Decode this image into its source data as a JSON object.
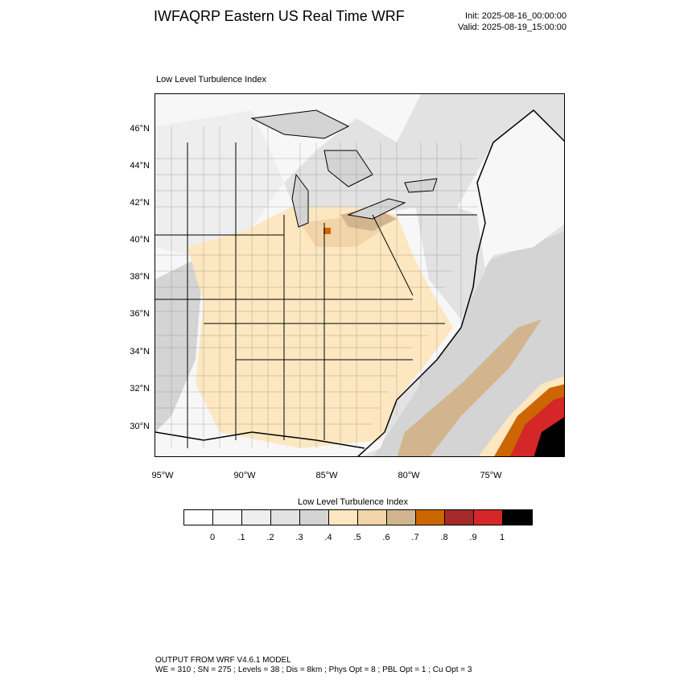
{
  "header": {
    "title": "IWFAQRP Eastern US Real Time WRF",
    "init": "Init: 2025-08-16_00:00:00",
    "valid": "Valid: 2025-08-19_15:00:00"
  },
  "plot": {
    "title": "Low Level Turbulence Index",
    "lat_labels": [
      "46°N",
      "44°N",
      "42°N",
      "40°N",
      "38°N",
      "36°N",
      "34°N",
      "32°N",
      "30°N"
    ],
    "lon_labels": [
      "95°W",
      "90°W",
      "85°W",
      "80°W",
      "75°W"
    ]
  },
  "colorbar": {
    "title": "Low Level Turbulence Index",
    "colors": [
      "#ffffff",
      "#f7f7f7",
      "#eeeeee",
      "#e2e2e2",
      "#d4d4d4",
      "#fde7c0",
      "#f2d4a8",
      "#d2b58e",
      "#cc6600",
      "#a52a2a",
      "#d62728",
      "#000000"
    ],
    "labels": [
      "0",
      ".1",
      ".2",
      ".3",
      ".4",
      ".5",
      ".6",
      ".7",
      ".8",
      ".9",
      "1"
    ]
  },
  "footer": {
    "line1": "OUTPUT FROM WRF V4.6.1 MODEL",
    "line2": "WE = 310 ; SN = 275 ; Levels = 38 ; Dis = 8km ; Phys Opt = 8 ; PBL Opt = 1 ; Cu Opt = 3"
  }
}
